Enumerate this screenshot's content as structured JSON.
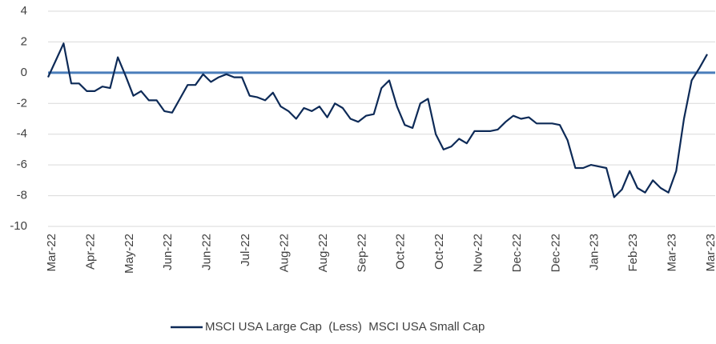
{
  "chart_data": {
    "type": "line",
    "categories": [
      "Mar-22",
      null,
      null,
      null,
      null,
      "Apr-22",
      null,
      null,
      null,
      null,
      "May-22",
      null,
      null,
      null,
      null,
      "Jun-22",
      null,
      null,
      null,
      null,
      "Jun-22",
      null,
      null,
      null,
      null,
      "Jul-22",
      null,
      null,
      null,
      null,
      "Aug-22",
      null,
      null,
      null,
      null,
      "Aug-22",
      null,
      null,
      null,
      null,
      "Sep-22",
      null,
      null,
      null,
      null,
      "Oct-22",
      null,
      null,
      null,
      null,
      "Oct-22",
      null,
      null,
      null,
      null,
      "Nov-22",
      null,
      null,
      null,
      null,
      "Dec-22",
      null,
      null,
      null,
      null,
      "Dec-22",
      null,
      null,
      null,
      null,
      "Jan-23",
      null,
      null,
      null,
      null,
      "Feb-23",
      null,
      null,
      null,
      null,
      "Mar-23",
      null,
      null,
      null,
      null,
      "Mar-23"
    ],
    "series": [
      {
        "name": "MSCI USA Large Cap  (Less)  MSCI USA Small Cap",
        "color": "#0d2a57",
        "values": [
          -0.3,
          0.8,
          1.9,
          -0.7,
          -0.7,
          -1.2,
          -1.2,
          -0.9,
          -1.0,
          1.0,
          -0.2,
          -1.5,
          -1.2,
          -1.8,
          -1.8,
          -2.5,
          -2.6,
          -1.7,
          -0.8,
          -0.8,
          -0.1,
          -0.6,
          -0.3,
          -0.1,
          -0.3,
          -0.3,
          -1.5,
          -1.6,
          -1.8,
          -1.3,
          -2.2,
          -2.5,
          -3.0,
          -2.3,
          -2.5,
          -2.2,
          -2.9,
          -2.0,
          -2.3,
          -3.0,
          -3.2,
          -2.8,
          -2.7,
          -1.0,
          -0.5,
          -2.2,
          -3.4,
          -3.6,
          -2.0,
          -1.7,
          -4.0,
          -5.0,
          -4.8,
          -4.3,
          -4.6,
          -3.8,
          -3.8,
          -3.8,
          -3.7,
          -3.2,
          -2.8,
          -3.0,
          -2.9,
          -3.3,
          -3.3,
          -3.3,
          -3.4,
          -4.4,
          -6.2,
          -6.2,
          -6.0,
          -6.1,
          -6.2,
          -8.1,
          -7.6,
          -6.4,
          -7.5,
          -7.8,
          -7.0,
          -7.5,
          -7.8,
          -6.4,
          -3.0,
          -0.5,
          0.3,
          1.2
        ]
      }
    ],
    "ylim": [
      -10,
      4
    ],
    "yticks": [
      -10,
      -8,
      -6,
      -4,
      -2,
      0,
      2,
      4
    ],
    "grid": true
  }
}
